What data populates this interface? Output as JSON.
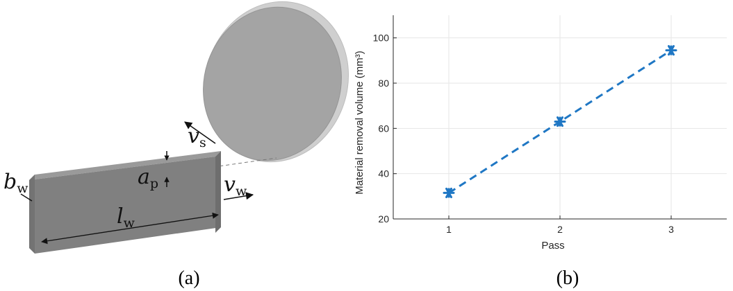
{
  "panel_a": {
    "caption": "(a)",
    "labels": {
      "vs": {
        "symbol": "v",
        "sub": "s"
      },
      "ap": {
        "symbol": "a",
        "sub": "p"
      },
      "vw": {
        "symbol": "v",
        "sub": "w"
      },
      "bw": {
        "symbol": "b",
        "sub": "w"
      },
      "lw": {
        "symbol": "l",
        "sub": "w"
      }
    },
    "colors": {
      "block_front": "#808080",
      "block_top": "#9a9a9a",
      "block_side": "#6e6e6e",
      "wheel_face": "#a4a4a4",
      "wheel_rim": "#cfcfcf"
    }
  },
  "panel_b": {
    "caption": "(b)"
  },
  "chart_data": {
    "type": "line",
    "x": [
      1,
      2,
      3
    ],
    "series": [
      {
        "values": [
          31.5,
          63,
          94.5
        ],
        "color": "#1f77c4",
        "line_style": "dashed",
        "marker": "asterisk"
      }
    ],
    "xlabel": "Pass",
    "ylabel": "Material removal volume (mm³)",
    "xlim": [
      0.5,
      3.5
    ],
    "ylim": [
      20,
      110
    ],
    "xticks": [
      "1",
      "2",
      "3"
    ],
    "yticks": [
      "20",
      "40",
      "60",
      "80",
      "100"
    ],
    "grid": true
  }
}
